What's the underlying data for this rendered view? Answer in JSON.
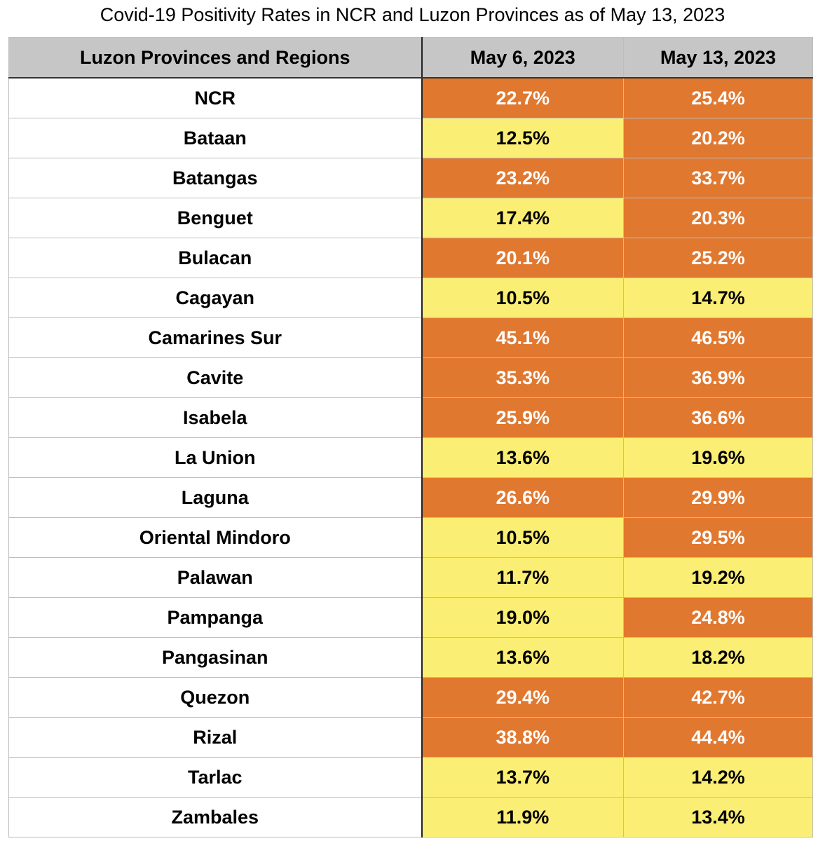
{
  "title": "Covid-19 Positivity Rates in NCR and Luzon Provinces as of May 13, 2023",
  "colors": {
    "high": "#e07830",
    "low": "#fbee74",
    "header": "#c6c6c6"
  },
  "chart_data": {
    "type": "table",
    "title": "Covid-19 Positivity Rates in NCR and Luzon Provinces as of May 13, 2023",
    "columns": [
      "Luzon Provinces and Regions",
      "May 6, 2023",
      "May 13, 2023"
    ],
    "rows": [
      {
        "name": "NCR",
        "may6": "22.7%",
        "may13": "25.4%"
      },
      {
        "name": "Bataan",
        "may6": "12.5%",
        "may13": "20.2%"
      },
      {
        "name": "Batangas",
        "may6": "23.2%",
        "may13": "33.7%"
      },
      {
        "name": "Benguet",
        "may6": "17.4%",
        "may13": "20.3%"
      },
      {
        "name": "Bulacan",
        "may6": "20.1%",
        "may13": "25.2%"
      },
      {
        "name": "Cagayan",
        "may6": "10.5%",
        "may13": "14.7%"
      },
      {
        "name": "Camarines Sur",
        "may6": "45.1%",
        "may13": "46.5%"
      },
      {
        "name": "Cavite",
        "may6": "35.3%",
        "may13": "36.9%"
      },
      {
        "name": "Isabela",
        "may6": "25.9%",
        "may13": "36.6%"
      },
      {
        "name": "La Union",
        "may6": "13.6%",
        "may13": "19.6%"
      },
      {
        "name": "Laguna",
        "may6": "26.6%",
        "may13": "29.9%"
      },
      {
        "name": "Oriental Mindoro",
        "may6": "10.5%",
        "may13": "29.5%"
      },
      {
        "name": "Palawan",
        "may6": "11.7%",
        "may13": "19.2%"
      },
      {
        "name": "Pampanga",
        "may6": "19.0%",
        "may13": "24.8%"
      },
      {
        "name": "Pangasinan",
        "may6": "13.6%",
        "may13": "18.2%"
      },
      {
        "name": "Quezon",
        "may6": "29.4%",
        "may13": "42.7%"
      },
      {
        "name": "Rizal",
        "may6": "38.8%",
        "may13": "44.4%"
      },
      {
        "name": "Tarlac",
        "may6": "13.7%",
        "may13": "14.2%"
      },
      {
        "name": "Zambales",
        "may6": "11.9%",
        "may13": "13.4%"
      }
    ]
  }
}
